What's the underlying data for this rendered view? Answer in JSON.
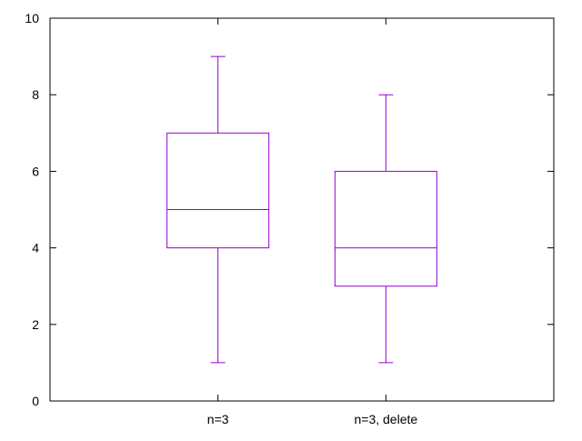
{
  "chart_data": {
    "type": "box",
    "title": "",
    "xlabel": "",
    "ylabel": "",
    "ylim": [
      0,
      10
    ],
    "yticks": [
      0,
      2,
      4,
      6,
      8,
      10
    ],
    "grid": false,
    "legend": "none",
    "color": "#9400d3",
    "categories": [
      "n=3",
      "n=3, delete"
    ],
    "boxes": [
      {
        "category": "n=3",
        "min": 1,
        "q1": 4,
        "median": 5,
        "q3": 7,
        "max": 9
      },
      {
        "category": "n=3, delete",
        "min": 1,
        "q1": 3,
        "median": 4,
        "q3": 6,
        "max": 8
      }
    ]
  }
}
